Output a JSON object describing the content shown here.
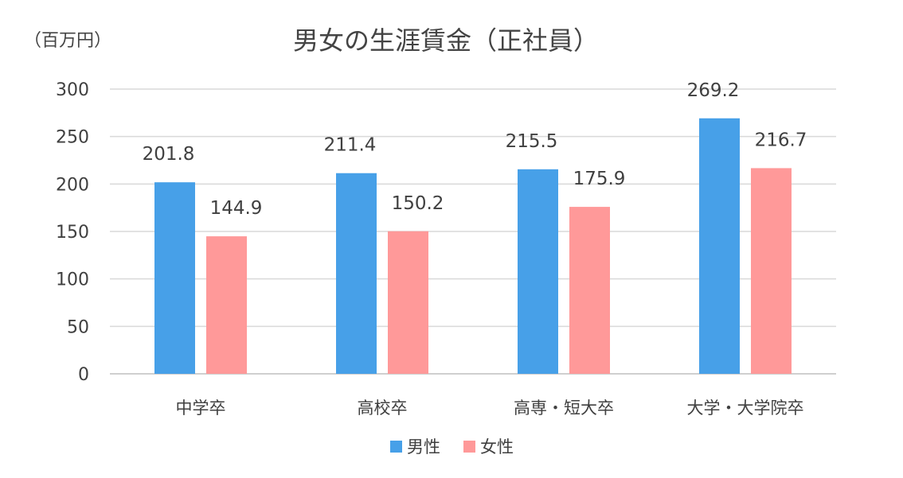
{
  "chart_data": {
    "type": "bar",
    "title": "男女の生涯賃金（正社員）",
    "unit_label": "（百万円）",
    "categories": [
      "中学卒",
      "高校卒",
      "高専・短大卒",
      "大学・大学院卒"
    ],
    "series": [
      {
        "name": "男性",
        "color": "#47a0e8",
        "values": [
          201.8,
          211.4,
          215.5,
          269.2
        ]
      },
      {
        "name": "女性",
        "color": "#ff9999",
        "values": [
          144.9,
          150.2,
          175.9,
          216.7
        ]
      }
    ],
    "ylim": [
      0,
      300
    ],
    "yticks": [
      0,
      50,
      100,
      150,
      200,
      250,
      300
    ],
    "grid": true,
    "legend_position": "bottom"
  }
}
